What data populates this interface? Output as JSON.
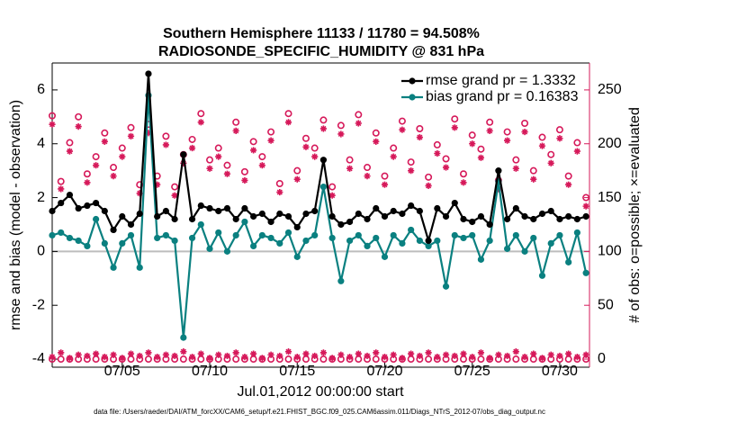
{
  "chart_data": {
    "type": "line",
    "title": "Southern Hemisphere 11133 / 11780 = 94.508%",
    "subtitle": "RADIOSONDE_SPECIFIC_HUMIDITY @ 831 hPa",
    "x_label": "Jul.01,2012 00:00:00 start",
    "y_label": "rmse and bias (model - observation)",
    "y2_label": "# of obs: o=possible; ×=evaluated",
    "footnote": "data file: /Users/raeder/DAI/ATM_forcXX/CAM6_setup/f.e21.FHIST_BGC.f09_025.CAM6assim.011/Diags_NTrS_2012-07/obs_diag_output.nc",
    "x": [
      0,
      0.5,
      1,
      1.5,
      2,
      2.5,
      3,
      3.5,
      4,
      4.5,
      5,
      5.5,
      6,
      6.5,
      7,
      7.5,
      8,
      8.5,
      9,
      9.5,
      10,
      10.5,
      11,
      11.5,
      12,
      12.5,
      13,
      13.5,
      14,
      14.5,
      15,
      15.5,
      16,
      16.5,
      17,
      17.5,
      18,
      18.5,
      19,
      19.5,
      20,
      20.5,
      21,
      21.5,
      22,
      22.5,
      23,
      23.5,
      24,
      24.5,
      25,
      25.5,
      26,
      26.5,
      27,
      27.5,
      28,
      28.5,
      29,
      29.5,
      30,
      30.5
    ],
    "xlim": [
      0,
      30.7
    ],
    "xticks": [
      {
        "value": 4,
        "label": "07/05"
      },
      {
        "value": 9,
        "label": "07/10"
      },
      {
        "value": 14,
        "label": "07/15"
      },
      {
        "value": 19,
        "label": "07/20"
      },
      {
        "value": 24,
        "label": "07/25"
      },
      {
        "value": 29,
        "label": "07/30"
      }
    ],
    "ylim": [
      -4.3,
      7
    ],
    "yticks": [
      -4,
      -2,
      0,
      2,
      4,
      6
    ],
    "y2lim": [
      -7.5,
      275
    ],
    "y2ticks": [
      0,
      50,
      100,
      150,
      200,
      250
    ],
    "y2_color": "#d6195a",
    "legend": "upper right",
    "legend_text_color": "#0a4fd6",
    "series": [
      {
        "name": "rmse grand pr = 1.3332",
        "color": "#000000",
        "marker": "dot",
        "line": true,
        "values": [
          1.5,
          1.8,
          2.1,
          1.6,
          1.7,
          1.8,
          1.5,
          0.8,
          1.3,
          1.0,
          1.4,
          6.6,
          1.3,
          1.5,
          1.2,
          3.6,
          1.2,
          1.7,
          1.6,
          1.5,
          1.6,
          1.2,
          1.6,
          1.3,
          1.4,
          1.1,
          1.4,
          1.3,
          0.9,
          1.4,
          1.5,
          3.4,
          1.3,
          1.0,
          1.1,
          1.4,
          1.2,
          1.6,
          1.3,
          1.5,
          1.4,
          1.7,
          1.5,
          0.4,
          1.6,
          1.3,
          1.8,
          1.2,
          1.1,
          1.3,
          1.0,
          3.0,
          1.2,
          1.6,
          1.3,
          1.2,
          1.4,
          1.5,
          1.2,
          1.3,
          1.2,
          1.3
        ]
      },
      {
        "name": "bias grand pr = 0.16383",
        "color": "#0a8080",
        "marker": "dot",
        "line": true,
        "values": [
          0.6,
          0.7,
          0.5,
          0.4,
          0.2,
          1.2,
          0.3,
          -0.6,
          0.3,
          0.6,
          -0.6,
          5.8,
          0.5,
          0.6,
          0.4,
          -3.2,
          0.5,
          1.0,
          0.1,
          0.7,
          0.0,
          0.6,
          1.1,
          0.2,
          0.6,
          0.5,
          0.3,
          0.7,
          -0.2,
          0.4,
          0.6,
          2.4,
          0.5,
          -1.1,
          0.4,
          0.6,
          0.2,
          0.5,
          -0.2,
          0.6,
          0.3,
          0.8,
          0.4,
          0.2,
          0.4,
          -1.3,
          0.6,
          0.5,
          0.6,
          -0.3,
          0.4,
          2.6,
          0.1,
          0.6,
          0.0,
          0.5,
          -0.9,
          0.3,
          0.6,
          -0.4,
          0.7,
          -0.8
        ]
      },
      {
        "color": "#d6195a",
        "axis": "y2",
        "marker": "o",
        "line": false,
        "values": [
          226,
          165,
          201,
          225,
          172,
          188,
          210,
          178,
          196,
          215,
          162,
          218,
          170,
          207,
          160,
          190,
          204,
          228,
          185,
          196,
          180,
          220,
          174,
          202,
          188,
          211,
          163,
          228,
          175,
          205,
          196,
          222,
          160,
          217,
          185,
          227,
          178,
          210,
          170,
          196,
          221,
          183,
          214,
          169,
          199,
          186,
          223,
          172,
          208,
          195,
          220,
          166,
          211,
          185,
          219,
          175,
          206,
          190,
          213,
          170,
          201,
          150
        ]
      },
      {
        "color": "#d6195a",
        "axis": "y2",
        "marker": "star",
        "line": false,
        "values": [
          218,
          158,
          193,
          216,
          164,
          180,
          202,
          170,
          188,
          207,
          154,
          210,
          162,
          199,
          152,
          182,
          196,
          220,
          177,
          188,
          172,
          212,
          166,
          194,
          180,
          203,
          155,
          220,
          167,
          197,
          188,
          214,
          152,
          209,
          177,
          219,
          170,
          202,
          162,
          188,
          213,
          175,
          206,
          161,
          191,
          178,
          215,
          164,
          200,
          187,
          212,
          158,
          203,
          177,
          211,
          167,
          198,
          182,
          205,
          162,
          193,
          142
        ]
      },
      {
        "color": "#d6195a",
        "axis": "y2",
        "marker": "o",
        "line": false,
        "values": [
          0,
          0,
          0,
          0,
          0,
          0,
          0,
          0,
          0,
          0,
          0,
          0,
          0,
          0,
          0,
          0,
          0,
          0,
          0,
          0,
          0,
          0,
          0,
          0,
          0,
          0,
          0,
          0,
          0,
          0,
          0,
          0,
          0,
          0,
          0,
          0,
          0,
          0,
          0,
          0,
          0,
          0,
          0,
          0,
          0,
          0,
          0,
          0,
          0,
          0,
          0,
          0,
          0,
          0,
          0,
          0,
          0,
          0,
          0,
          0,
          0,
          0
        ]
      },
      {
        "color": "#d6195a",
        "axis": "y2",
        "marker": "star",
        "line": false,
        "values": [
          2,
          6,
          1,
          4,
          3,
          5,
          2,
          4,
          1,
          5,
          3,
          6,
          2,
          4,
          3,
          7,
          2,
          5,
          1,
          4,
          3,
          6,
          2,
          5,
          1,
          4,
          3,
          7,
          2,
          5,
          3,
          6,
          1,
          4,
          2,
          5,
          3,
          6,
          2,
          4,
          1,
          5,
          3,
          6,
          2,
          4,
          3,
          5,
          2,
          6,
          1,
          4,
          3,
          7,
          2,
          5,
          1,
          4,
          3,
          5,
          2,
          4
        ]
      }
    ]
  }
}
